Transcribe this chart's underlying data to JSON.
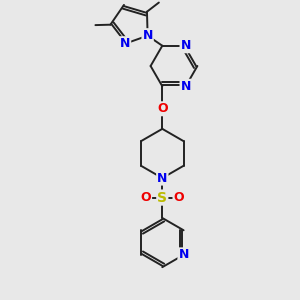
{
  "bg_color": "#e8e8e8",
  "bond_color": "#222222",
  "bond_width": 1.4,
  "atom_colors": {
    "N": "#0000ee",
    "O": "#ee0000",
    "S": "#bbbb00",
    "C": "#222222"
  },
  "figsize": [
    3.0,
    3.0
  ],
  "dpi": 100,
  "xlim": [
    0,
    10
  ],
  "ylim": [
    0,
    10
  ]
}
